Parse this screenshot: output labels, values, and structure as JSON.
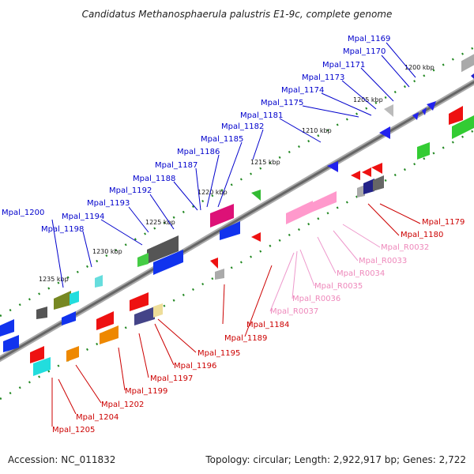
{
  "title": "Candidatus Methanosphaerula palustris E1-9c, complete genome",
  "accession": "Accession: NC_011832",
  "topology": "Topology: circular; Length: 2,922,917 bp; Genes: 2,722",
  "kbp_ticks": [
    "1200 kbp",
    "1205 kbp",
    "1210 kbp",
    "1215 kbp",
    "1220 kbp",
    "1225 kbp",
    "1230 kbp",
    "1235 kbp"
  ],
  "upper_labels": [
    "Mpal_1169",
    "Mpal_1170",
    "Mpal_1171",
    "Mpal_1173",
    "Mpal_1174",
    "Mpal_1175",
    "Mpal_1181",
    "Mpal_1182",
    "Mpal_1185",
    "Mpal_1186",
    "Mpal_1187",
    "Mpal_1188",
    "Mpal_1192",
    "Mpal_1193",
    "Mpal_1194",
    "Mpal_1198",
    "Mpal_1200"
  ],
  "lower_labels": [
    "Mpal_1179",
    "Mpal_1180",
    "Mpal_R0032",
    "Mpal_R0033",
    "Mpal_R0034",
    "Mpal_R0035",
    "Mpal_R0036",
    "Mpal_R0037",
    "Mpal_1184",
    "Mpal_1189",
    "Mpal_1195",
    "Mpal_1196",
    "Mpal_1197",
    "Mpal_1199",
    "Mpal_1202",
    "Mpal_1204",
    "Mpal_1205"
  ],
  "colors": {
    "forward_label": "#0000cc",
    "reverse_label": "#cc0000",
    "rna_label": "#ee88bb",
    "backbone": "#777777",
    "tick": "#228822"
  }
}
